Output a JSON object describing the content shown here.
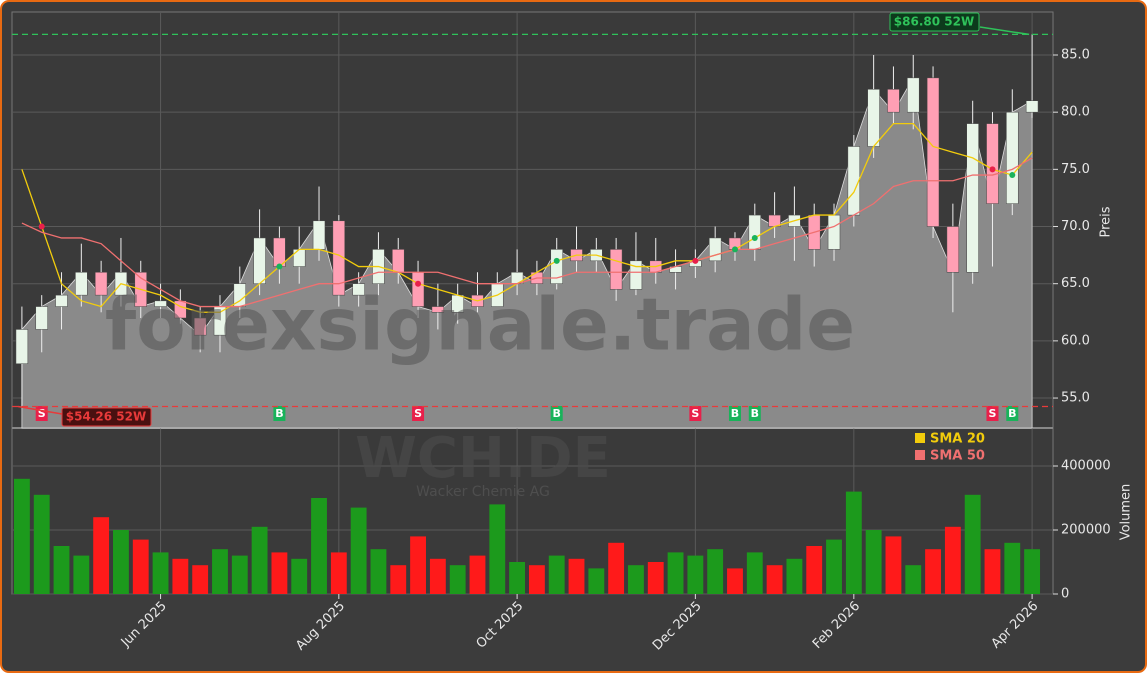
{
  "chart_data": {
    "type": "candlestick",
    "categories": [
      null,
      null,
      null,
      null,
      null,
      null,
      null,
      "Jun 2025",
      null,
      null,
      null,
      null,
      null,
      null,
      null,
      null,
      "Aug 2025",
      null,
      null,
      null,
      null,
      null,
      null,
      null,
      null,
      "Oct 2025",
      null,
      null,
      null,
      null,
      null,
      null,
      null,
      null,
      "Dec 2025",
      null,
      null,
      null,
      null,
      null,
      null,
      null,
      "Feb 2026",
      null,
      null,
      null,
      null,
      null,
      null,
      null,
      null,
      "Apr 2026"
    ],
    "open": [
      58,
      61,
      63,
      64,
      66,
      64,
      66,
      63,
      63.5,
      62,
      60.5,
      63,
      65,
      69,
      66.5,
      68,
      70.5,
      64,
      65,
      68,
      66,
      63,
      62.5,
      64,
      63,
      65,
      66,
      65,
      68,
      67,
      68,
      64.5,
      67,
      66,
      66.5,
      67,
      69,
      68,
      71,
      70,
      71,
      68,
      71,
      77,
      82,
      80,
      83,
      70,
      66,
      79,
      72,
      80
    ],
    "high": [
      63,
      64,
      66,
      68.5,
      67,
      69,
      67,
      65,
      64.5,
      63,
      64,
      66.5,
      71.5,
      70,
      70,
      73.5,
      71,
      66,
      69.5,
      69,
      67,
      65,
      65,
      66,
      66,
      68,
      67,
      69,
      70,
      69,
      69,
      69.5,
      69,
      68,
      68,
      70,
      69.5,
      72,
      73,
      73.5,
      72,
      72,
      78,
      85,
      84,
      85,
      84,
      72,
      81,
      80,
      82,
      86.8
    ],
    "low": [
      54.3,
      59,
      61,
      63,
      62.5,
      63,
      62,
      62,
      61.5,
      59,
      59,
      62,
      64,
      65,
      65,
      67,
      63,
      63,
      64,
      65,
      62,
      61,
      61.5,
      62.5,
      63,
      64,
      64,
      64.5,
      66,
      66,
      63.5,
      64,
      65,
      64.5,
      65.5,
      66,
      67,
      67,
      69,
      67,
      66.5,
      67,
      70,
      76,
      79,
      78.5,
      69,
      62.5,
      65,
      66.5,
      71,
      79.5
    ],
    "close": [
      61,
      63,
      64,
      66,
      64,
      66,
      63,
      63.5,
      62,
      60.5,
      63,
      65,
      69,
      66.5,
      68,
      70.5,
      64,
      65,
      68,
      66,
      63,
      62.5,
      64,
      63,
      65,
      66,
      65,
      68,
      67,
      68,
      64.5,
      67,
      66,
      66.5,
      67,
      69,
      68,
      71,
      70,
      71,
      68,
      71,
      77,
      82,
      80,
      83,
      70,
      66,
      79,
      72,
      80,
      81
    ],
    "volume": [
      360000,
      310000,
      150000,
      120000,
      240000,
      200000,
      170000,
      130000,
      110000,
      90000,
      140000,
      120000,
      210000,
      130000,
      110000,
      300000,
      130000,
      270000,
      140000,
      90000,
      180000,
      110000,
      90000,
      120000,
      280000,
      100000,
      90000,
      120000,
      110000,
      80000,
      160000,
      90000,
      100000,
      130000,
      120000,
      140000,
      80000,
      130000,
      90000,
      110000,
      150000,
      170000,
      320000,
      200000,
      180000,
      90000,
      140000,
      210000,
      310000,
      140000,
      160000,
      140000
    ],
    "series": [
      {
        "name": "SMA 20",
        "color": "#f2cc0c",
        "values": [
          75,
          70,
          65,
          63.5,
          63,
          65,
          64.5,
          64,
          63,
          62.5,
          62.5,
          63.5,
          65,
          66.5,
          68,
          68,
          67.5,
          66.5,
          66.5,
          66,
          65,
          64.5,
          64,
          63.5,
          64,
          65,
          66,
          67,
          67.5,
          67.5,
          67,
          66.5,
          66.5,
          67,
          67,
          67.5,
          68,
          69,
          70,
          70.5,
          71,
          71,
          73,
          77,
          79,
          79,
          77,
          76.5,
          76,
          75,
          74.5,
          76.5
        ]
      },
      {
        "name": "SMA 50",
        "color": "#f07070",
        "values": [
          70.3,
          69.5,
          69,
          69,
          68.5,
          67,
          65.5,
          64.5,
          63.5,
          63,
          63,
          63,
          63.5,
          64,
          64.5,
          65,
          65,
          65.5,
          66,
          66,
          66,
          66,
          65.5,
          65,
          65,
          65,
          65.5,
          65.5,
          66,
          66,
          66,
          66,
          66,
          66.5,
          67,
          67.5,
          68,
          68,
          68.5,
          69,
          69.5,
          70,
          71,
          72,
          73.5,
          74,
          74,
          74,
          74.5,
          74.5,
          75,
          76
        ]
      }
    ],
    "signals": [
      null,
      "S",
      null,
      null,
      null,
      null,
      null,
      null,
      null,
      null,
      null,
      null,
      null,
      "B",
      null,
      null,
      null,
      null,
      null,
      null,
      "S",
      null,
      null,
      null,
      null,
      null,
      null,
      "B",
      null,
      null,
      null,
      null,
      null,
      null,
      "S",
      null,
      "B",
      "B",
      null,
      null,
      null,
      null,
      null,
      null,
      null,
      null,
      null,
      null,
      null,
      "S",
      "B",
      null
    ],
    "signal_colors": {
      "S": "#e8204a",
      "B": "#19b35a"
    },
    "up_color": "#e8f5e8",
    "down_color": "#ff9fb4",
    "volume_up_color": "#1c9a1c",
    "volume_down_color": "#ff1a1a",
    "area_color": "#8a8a8a",
    "ylim": [
      52.38,
      88.76
    ],
    "yticks": [
      {
        "value": 55,
        "label": "55.0"
      },
      {
        "value": 60,
        "label": "60.0"
      },
      {
        "value": 65,
        "label": "65.0"
      },
      {
        "value": 70,
        "label": "70.0"
      },
      {
        "value": 75,
        "label": "75.0"
      },
      {
        "value": 80,
        "label": "80.0"
      },
      {
        "value": 85,
        "label": "85.0"
      }
    ],
    "y2lim": [
      0,
      518750
    ],
    "y2ticks": [
      0,
      200000,
      400000
    ],
    "ylabel": "Preis",
    "y2label": "Volumen",
    "high_52w": {
      "value": 86.8,
      "label": "$86.80 52W",
      "color": "#2fc25a"
    },
    "low_52w": {
      "value": 54.26,
      "label": "$54.26 52W",
      "color": "#e83a3a"
    },
    "watermark": "forexsignale.trade",
    "ticker": "WCH.DE",
    "company": "Wacker Chemie AG",
    "grid": true
  }
}
